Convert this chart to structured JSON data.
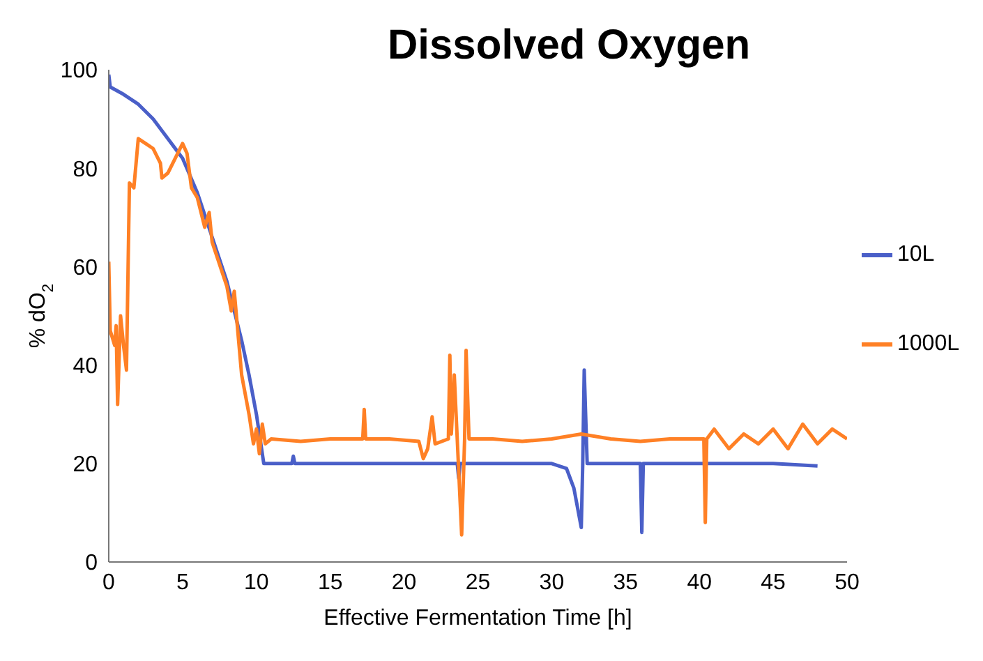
{
  "chart_data": {
    "type": "line",
    "title": "Dissolved Oxygen",
    "xlabel": "Effective Fermentation Time [h]",
    "ylabel": "% dO$_{2}$",
    "xlim": [
      0,
      50
    ],
    "xticks": [
      0,
      5,
      10,
      15,
      20,
      25,
      30,
      35,
      40,
      45,
      50
    ],
    "ylim": [
      0,
      100
    ],
    "yticks": [
      0,
      20,
      40,
      60,
      80,
      100
    ],
    "grid": false,
    "legend": "right",
    "marker": "none",
    "line_style": "solid",
    "series": [
      {
        "name": "10L",
        "color": "#4a5fc8",
        "x": [
          0,
          0.1,
          1,
          2,
          3,
          4,
          5,
          6,
          7,
          8,
          9,
          9.5,
          10,
          10.5,
          11,
          12.4,
          12.5,
          12.6,
          15,
          20,
          23.6,
          23.7,
          23.8,
          28,
          30,
          31,
          31.5,
          32,
          32.1,
          32.2,
          32.4,
          34,
          36,
          36.1,
          36.2,
          40,
          45,
          48
        ],
        "values": [
          99,
          96.5,
          95,
          93,
          90,
          86,
          82,
          75,
          66,
          57,
          45,
          38,
          30,
          20,
          20,
          20,
          21.5,
          20,
          20,
          20,
          20,
          17,
          20,
          20,
          20,
          19,
          15,
          7,
          20,
          39,
          20,
          20,
          20,
          6,
          20,
          20,
          20,
          19.5
        ]
      },
      {
        "name": "1000L",
        "color": "#ff8025",
        "x": [
          0,
          0.1,
          0.4,
          0.5,
          0.6,
          0.8,
          1,
          1.2,
          1.4,
          1.7,
          2,
          2.5,
          3,
          3.5,
          3.6,
          4,
          4.5,
          5,
          5.3,
          5.6,
          6,
          6.5,
          6.8,
          7,
          8,
          8.3,
          8.5,
          9,
          9.5,
          9.8,
          10,
          10.2,
          10.4,
          10.6,
          11,
          13,
          15,
          17.2,
          17.3,
          17.4,
          19,
          21,
          21.3,
          21.6,
          21.9,
          22.1,
          23,
          23.1,
          23.2,
          23.4,
          23.6,
          23.9,
          24.1,
          24.2,
          24.4,
          26,
          28,
          30,
          32,
          34,
          36,
          38,
          40.3,
          40.4,
          40.5,
          41,
          42,
          43,
          44,
          45,
          46,
          47,
          48,
          49,
          50
        ],
        "values": [
          61,
          47,
          44,
          48,
          32,
          50,
          44,
          39,
          77,
          76,
          86,
          85,
          84,
          81,
          78,
          79,
          82,
          85,
          83,
          76,
          74,
          68,
          71,
          65,
          56,
          51,
          55,
          38,
          30,
          24,
          27,
          22,
          28,
          24,
          25,
          24.5,
          25,
          25,
          31,
          25,
          25,
          24.5,
          21,
          23,
          29.5,
          24,
          25,
          42,
          26,
          38,
          25,
          5.5,
          25,
          43,
          25,
          25,
          24.5,
          25,
          26,
          25,
          24.5,
          25,
          25,
          8,
          25,
          27,
          23,
          26,
          24,
          27,
          23,
          28,
          24,
          27,
          25
        ]
      }
    ]
  }
}
